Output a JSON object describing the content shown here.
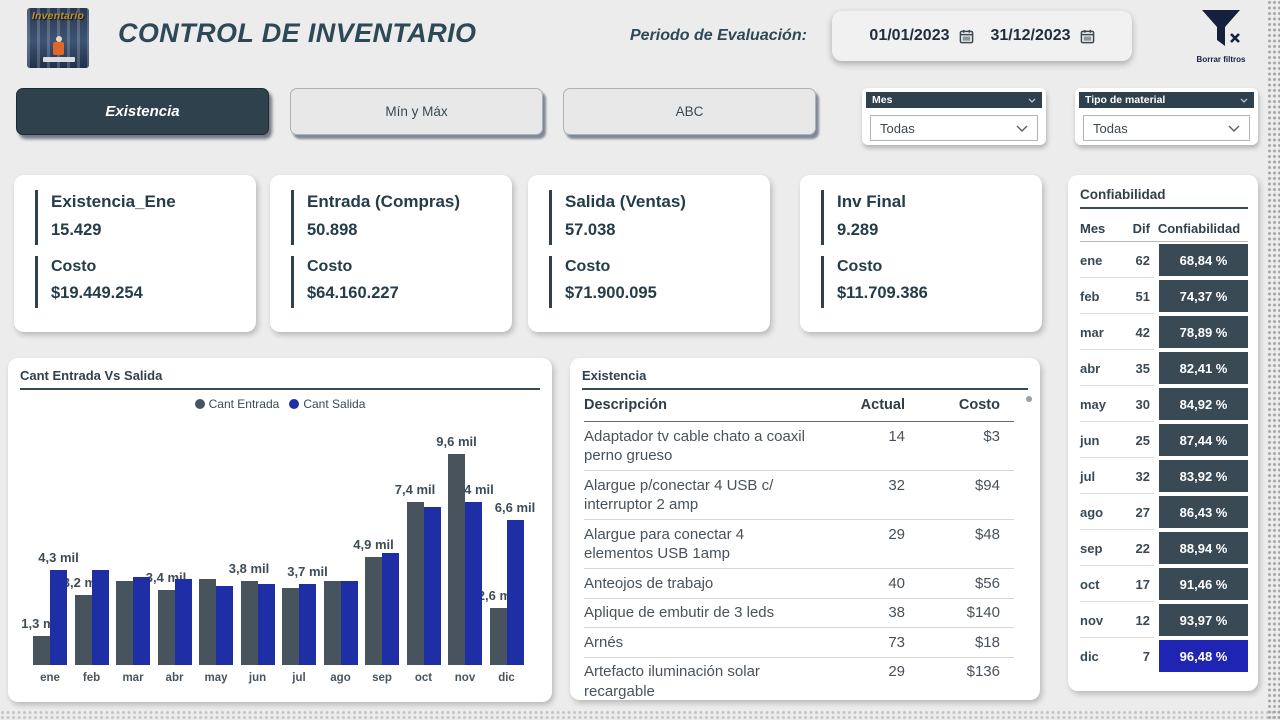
{
  "header": {
    "logo_text": "Inventario",
    "title": "CONTROL DE INVENTARIO",
    "period_label": "Periodo de Evaluación:",
    "date_start": "01/01/2023",
    "date_end": "31/12/2023",
    "clear_filters_label": "Borrar filtros"
  },
  "icons": {
    "clear_filters": "funnel-x-icon",
    "calendar": "calendar-icon",
    "dropdown": "chevron-down-icon",
    "legend_marker": "circle-dot-icon"
  },
  "colors": {
    "accent_dark": "#2F414C",
    "bar_entrada": "#47545E",
    "bar_salida": "#1E2EA5",
    "conf_cell": "#3A4A54",
    "conf_highlight": "#1F24B2",
    "background": "#ECECEC"
  },
  "tabs": [
    {
      "label": "Existencia",
      "active": true
    },
    {
      "label": "Mín y Máx",
      "active": false
    },
    {
      "label": "ABC",
      "active": false
    }
  ],
  "slicers": [
    {
      "title": "Mes",
      "value": "Todas"
    },
    {
      "title": "Tipo de material",
      "value": "Todas"
    }
  ],
  "kpis": [
    {
      "title": "Existencia_Ene",
      "value": "15.429",
      "cost_label": "Costo",
      "cost": "$19.449.254"
    },
    {
      "title": "Entrada (Compras)",
      "value": "50.898",
      "cost_label": "Costo",
      "cost": "$64.160.227"
    },
    {
      "title": "Salida (Ventas)",
      "value": "57.038",
      "cost_label": "Costo",
      "cost": "$71.900.095"
    },
    {
      "title": "Inv Final",
      "value": "9.289",
      "cost_label": "Costo",
      "cost": "$11.709.386"
    }
  ],
  "chart_data": {
    "type": "bar",
    "title": "Cant Entrada Vs Salida",
    "xlabel": "",
    "ylabel": "",
    "unit": "mil",
    "ylim": [
      0,
      10.5
    ],
    "grid": false,
    "legend_position": "top",
    "categories": [
      "ene",
      "feb",
      "mar",
      "abr",
      "may",
      "jun",
      "jul",
      "ago",
      "sep",
      "oct",
      "nov",
      "dic"
    ],
    "series": [
      {
        "name": "Cant Entrada",
        "color": "#47545E",
        "values": [
          1.3,
          3.2,
          3.8,
          3.4,
          3.9,
          3.8,
          3.5,
          3.8,
          4.9,
          7.4,
          9.6,
          2.6
        ],
        "labels": [
          "1,3 mil",
          "3,2 mil",
          "",
          "3,4 mil",
          "",
          "3,8 mil",
          "",
          "",
          "4,9 mil",
          "7,4 mil",
          "9,6 mil",
          "2,6 mil"
        ]
      },
      {
        "name": "Cant Salida",
        "color": "#1E2EA5",
        "values": [
          4.3,
          4.3,
          4.0,
          3.9,
          3.6,
          3.7,
          3.7,
          3.8,
          5.1,
          7.2,
          7.4,
          6.6
        ],
        "labels": [
          "4,3 mil",
          "",
          "",
          "",
          "",
          "",
          "3,7 mil",
          "",
          "",
          "",
          "7,4 mil",
          "6,6 mil"
        ]
      }
    ]
  },
  "existencia_table": {
    "title": "Existencia",
    "columns": [
      "Descripción",
      "Actual",
      "Costo"
    ],
    "rows": [
      {
        "desc": "Adaptador tv cable chato a coaxil\nperno grueso",
        "actual": "14",
        "costo": "$3"
      },
      {
        "desc": "Alargue p/conectar 4 USB c/\ninterruptor 2 amp",
        "actual": "32",
        "costo": "$94"
      },
      {
        "desc": "Alargue para conectar 4\nelementos USB 1amp",
        "actual": "29",
        "costo": "$48"
      },
      {
        "desc": "Anteojos de trabajo",
        "actual": "40",
        "costo": "$56"
      },
      {
        "desc": "Aplique de embutir de 3 leds",
        "actual": "38",
        "costo": "$140"
      },
      {
        "desc": "Arnés",
        "actual": "73",
        "costo": "$18"
      },
      {
        "desc": "Artefacto iluminación solar\nrecargable",
        "actual": "29",
        "costo": "$136"
      }
    ]
  },
  "confiabilidad": {
    "title": "Confiabilidad",
    "columns": [
      "Mes",
      "Dif",
      "Confiabilidad"
    ],
    "rows": [
      {
        "mes": "ene",
        "dif": "62",
        "conf": "68,84 %",
        "highlight": false
      },
      {
        "mes": "feb",
        "dif": "51",
        "conf": "74,37 %",
        "highlight": false
      },
      {
        "mes": "mar",
        "dif": "42",
        "conf": "78,89 %",
        "highlight": false
      },
      {
        "mes": "abr",
        "dif": "35",
        "conf": "82,41 %",
        "highlight": false
      },
      {
        "mes": "may",
        "dif": "30",
        "conf": "84,92 %",
        "highlight": false
      },
      {
        "mes": "jun",
        "dif": "25",
        "conf": "87,44 %",
        "highlight": false
      },
      {
        "mes": "jul",
        "dif": "32",
        "conf": "83,92 %",
        "highlight": false
      },
      {
        "mes": "ago",
        "dif": "27",
        "conf": "86,43 %",
        "highlight": false
      },
      {
        "mes": "sep",
        "dif": "22",
        "conf": "88,94 %",
        "highlight": false
      },
      {
        "mes": "oct",
        "dif": "17",
        "conf": "91,46 %",
        "highlight": false
      },
      {
        "mes": "nov",
        "dif": "12",
        "conf": "93,97 %",
        "highlight": false
      },
      {
        "mes": "dic",
        "dif": "7",
        "conf": "96,48 %",
        "highlight": true
      }
    ]
  }
}
